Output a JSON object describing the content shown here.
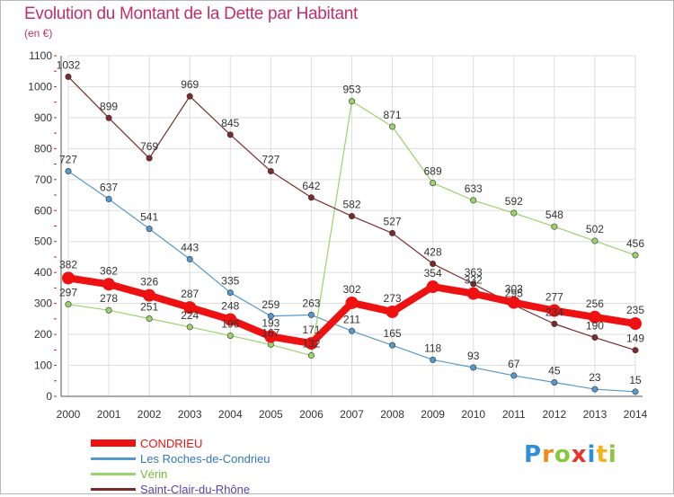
{
  "title": "Evolution du Montant de la Dette par Habitant",
  "subtitle": "(en €)",
  "brand": {
    "letters": [
      {
        "ch": "P",
        "color": "#2f8fd8"
      },
      {
        "ch": "r",
        "color": "#f08a20"
      },
      {
        "ch": "o",
        "color": "#8cc63f"
      },
      {
        "ch": "x",
        "color": "#e8342c"
      },
      {
        "ch": "i",
        "color": "#2f8fd8"
      },
      {
        "ch": "t",
        "color": "#f6b21a"
      },
      {
        "ch": "i",
        "color": "#8cc63f"
      }
    ]
  },
  "chart_data": {
    "type": "line",
    "x": [
      "2000",
      "2001",
      "2002",
      "2003",
      "2004",
      "2005",
      "2006",
      "2007",
      "2008",
      "2009",
      "2010",
      "2011",
      "2012",
      "2013",
      "2014"
    ],
    "ylim": [
      0,
      1100
    ],
    "yticks": [
      0,
      100,
      200,
      300,
      400,
      500,
      600,
      700,
      800,
      900,
      1000,
      1100
    ],
    "grid": true,
    "legend_position": "bottom-left",
    "series": [
      {
        "name": "CONDRIEU",
        "color": "#ee1111",
        "text_color": "#ee1111",
        "emphasis": true,
        "values": [
          382,
          362,
          326,
          287,
          248,
          193,
          171,
          302,
          273,
          354,
          332,
          303,
          277,
          256,
          235
        ]
      },
      {
        "name": "Les Roches-de-Condrieu",
        "color": "#5599cc",
        "text_color": "#3377bb",
        "emphasis": false,
        "values": [
          727,
          637,
          541,
          443,
          335,
          259,
          263,
          211,
          165,
          118,
          93,
          67,
          45,
          23,
          15
        ]
      },
      {
        "name": "Vérin",
        "color": "#99d36b",
        "text_color": "#77bb33",
        "emphasis": false,
        "values": [
          297,
          278,
          251,
          224,
          196,
          167,
          132,
          953,
          871,
          689,
          633,
          592,
          548,
          502,
          456
        ]
      },
      {
        "name": "Saint-Clair-du-Rhône",
        "color": "#7a2a2a",
        "text_color": "#5544aa",
        "emphasis": false,
        "values": [
          1032,
          899,
          769,
          969,
          845,
          727,
          642,
          582,
          527,
          428,
          363,
          295,
          234,
          190,
          149
        ]
      }
    ]
  }
}
